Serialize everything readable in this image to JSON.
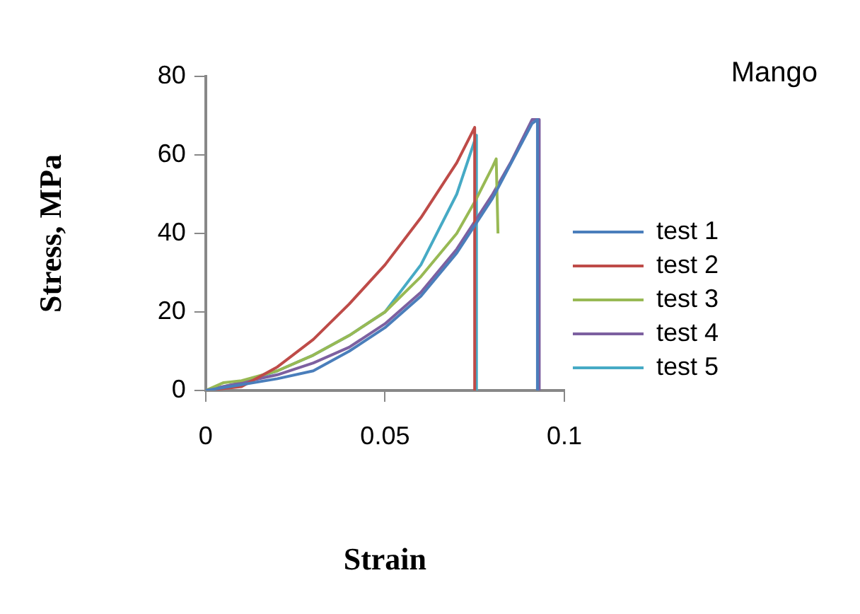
{
  "chart_data": {
    "type": "line",
    "title": "Mango",
    "xlabel": "Strain",
    "ylabel": "Stress, MPa",
    "xlim": [
      0,
      0.1
    ],
    "xticks": [
      0,
      0.05,
      0.1
    ],
    "ylim": [
      0,
      80
    ],
    "yticks": [
      0,
      20,
      40,
      60,
      80
    ],
    "grid": false,
    "legend": "right",
    "marker": "none",
    "line_style": "solid",
    "series": [
      {
        "name": "test 1",
        "color": "#4a7ebb",
        "x": [
          0,
          0.01,
          0.02,
          0.03,
          0.04,
          0.05,
          0.06,
          0.07,
          0.08,
          0.091,
          0.0925,
          0.0925
        ],
        "values": [
          0,
          1.5,
          3,
          5,
          10,
          16,
          24,
          35,
          49,
          68,
          69,
          0
        ]
      },
      {
        "name": "test 2",
        "color": "#be4b48",
        "x": [
          0,
          0.005,
          0.01,
          0.02,
          0.03,
          0.04,
          0.05,
          0.06,
          0.07,
          0.075,
          0.075
        ],
        "values": [
          0,
          0.5,
          1,
          6,
          13,
          22,
          32,
          44,
          58,
          67,
          0
        ]
      },
      {
        "name": "test 3",
        "color": "#98b954",
        "x": [
          0,
          0.005,
          0.01,
          0.02,
          0.03,
          0.04,
          0.05,
          0.06,
          0.07,
          0.075,
          0.08,
          0.081,
          0.0815
        ],
        "values": [
          0,
          2,
          2.5,
          5,
          9,
          14,
          20,
          29,
          40,
          48,
          57,
          59,
          40
        ]
      },
      {
        "name": "test 4",
        "color": "#7d60a0",
        "x": [
          0,
          0.01,
          0.02,
          0.03,
          0.04,
          0.05,
          0.06,
          0.07,
          0.08,
          0.085,
          0.091,
          0.093,
          0.093
        ],
        "values": [
          0,
          2,
          4,
          7,
          11,
          17,
          25,
          36,
          50,
          58,
          69,
          69,
          0
        ]
      },
      {
        "name": "test 5",
        "color": "#46aac5",
        "x": [
          0,
          0.01,
          0.02,
          0.03,
          0.04,
          0.05,
          0.06,
          0.07,
          0.0755,
          0.0755
        ],
        "values": [
          0,
          2,
          5,
          9,
          14,
          20,
          32,
          50,
          65,
          0
        ]
      }
    ]
  }
}
